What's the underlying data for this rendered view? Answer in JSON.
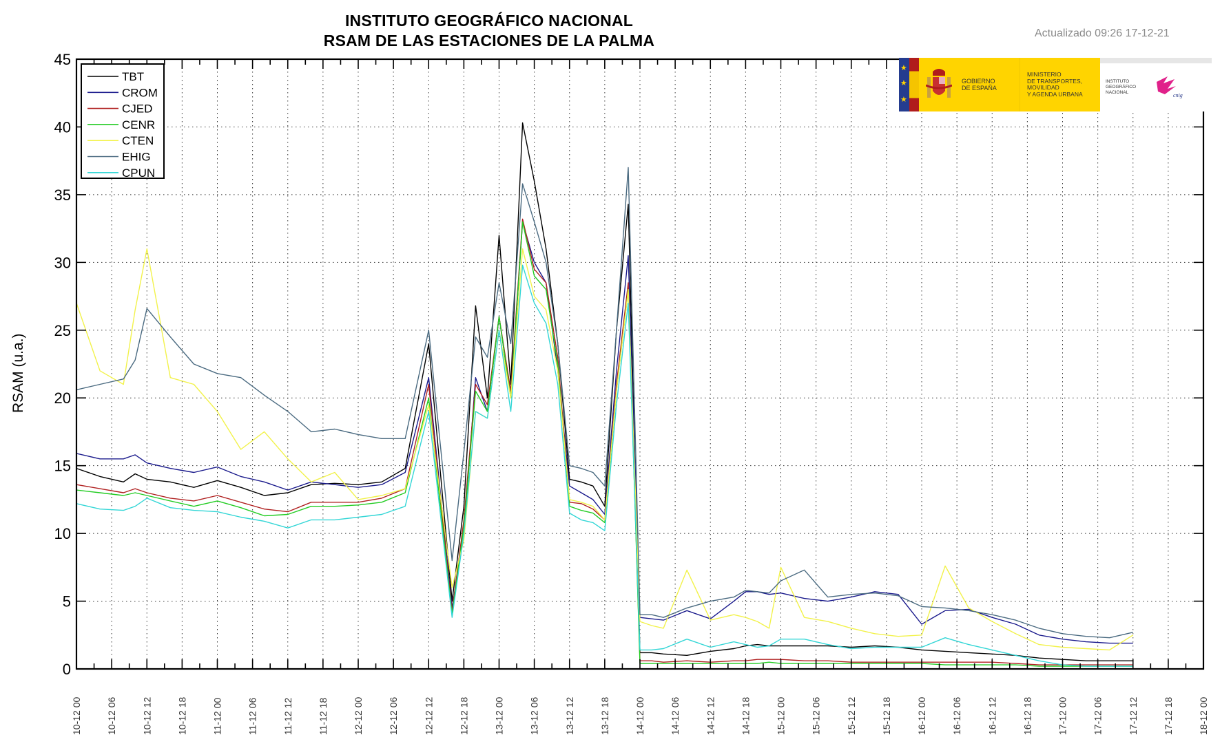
{
  "header": {
    "title_line1": "INSTITUTO GEOGRÁFICO NACIONAL",
    "title_line2": "RSAM DE LAS ESTACIONES DE LA PALMA",
    "updated": "Actualizado 09:26 17-12-21"
  },
  "logo": {
    "gobierno": "GOBIERNO DE ESPAÑA",
    "ministerio_1": "MINISTERIO",
    "ministerio_2": "DE TRANSPORTES, MOVILIDAD",
    "ministerio_3": "Y AGENDA URBANA",
    "ign_1": "INSTITUTO",
    "ign_2": "GEOGRÁFICO",
    "ign_3": "NACIONAL",
    "cnig": "cnig",
    "colors": {
      "yellow": "#ffd400",
      "blue": "#243c8f",
      "red": "#b01c1c",
      "magenta": "#e0218a"
    }
  },
  "chart_data": {
    "type": "line",
    "title": "INSTITUTO GEOGRÁFICO NACIONAL / RSAM DE LAS ESTACIONES DE LA PALMA",
    "xlabel": "",
    "ylabel": "RSAM (u.a.)",
    "ylim": [
      0,
      45
    ],
    "yticks": [
      0,
      5,
      10,
      15,
      20,
      25,
      30,
      35,
      40,
      45
    ],
    "xlim_hours": [
      0,
      192
    ],
    "x_unit": "hours since 10-12 00",
    "xtick_labels": [
      "10-12 00",
      "10-12 06",
      "10-12 12",
      "10-12 18",
      "11-12 00",
      "11-12 06",
      "11-12 12",
      "11-12 18",
      "12-12 00",
      "12-12 06",
      "12-12 12",
      "12-12 18",
      "13-12 00",
      "13-12 06",
      "13-12 12",
      "13-12 18",
      "14-12 00",
      "14-12 06",
      "14-12 12",
      "14-12 18",
      "15-12 00",
      "15-12 06",
      "15-12 12",
      "15-12 18",
      "16-12 00",
      "16-12 06",
      "16-12 12",
      "16-12 18",
      "17-12 00",
      "17-12 06",
      "17-12 12",
      "17-12 18",
      "18-12 00"
    ],
    "grid": true,
    "legend_position": "upper left",
    "x": [
      0,
      4,
      8,
      10,
      12,
      16,
      20,
      24,
      28,
      32,
      36,
      40,
      44,
      48,
      52,
      56,
      60,
      64,
      66,
      68,
      70,
      72,
      74,
      76,
      78,
      80,
      82,
      84,
      86,
      88,
      90,
      92,
      94,
      96,
      98,
      100,
      104,
      108,
      112,
      114,
      116,
      118,
      120,
      124,
      128,
      132,
      136,
      140,
      144,
      148,
      152,
      156,
      160,
      164,
      168,
      172,
      176,
      180
    ],
    "series": [
      {
        "name": "TBT",
        "color": "#000000",
        "values": [
          14.8,
          14.2,
          13.8,
          14.4,
          14.0,
          13.8,
          13.4,
          13.9,
          13.4,
          12.8,
          13.0,
          13.6,
          13.7,
          13.6,
          13.8,
          14.8,
          24.0,
          5.0,
          12.0,
          26.8,
          20.0,
          32.0,
          21.0,
          40.3,
          36.0,
          31.0,
          24.0,
          14.0,
          13.8,
          13.5,
          12.0,
          25.0,
          34.3,
          1.2,
          1.2,
          1.1,
          1.0,
          1.3,
          1.5,
          1.7,
          1.8,
          1.7,
          1.7,
          1.7,
          1.7,
          1.6,
          1.7,
          1.6,
          1.4,
          1.3,
          1.2,
          1.1,
          1.0,
          0.8,
          0.7,
          0.6,
          0.6,
          0.6
        ]
      },
      {
        "name": "CROM",
        "color": "#1a1a8c",
        "values": [
          15.9,
          15.5,
          15.5,
          15.8,
          15.2,
          14.8,
          14.5,
          14.9,
          14.2,
          13.8,
          13.2,
          13.8,
          13.6,
          13.4,
          13.6,
          14.5,
          21.5,
          4.5,
          10.0,
          21.5,
          19.0,
          26.0,
          20.0,
          33.0,
          30.0,
          28.5,
          22.0,
          13.5,
          13.0,
          12.5,
          11.4,
          22.0,
          30.5,
          3.8,
          3.7,
          3.6,
          4.3,
          3.7,
          5.0,
          5.7,
          5.7,
          5.5,
          5.6,
          5.2,
          5.0,
          5.3,
          5.7,
          5.5,
          3.3,
          4.3,
          4.4,
          3.8,
          3.3,
          2.5,
          2.2,
          2.0,
          1.9,
          1.9
        ]
      },
      {
        "name": "CJED",
        "color": "#b02020",
        "values": [
          13.6,
          13.3,
          13.0,
          13.3,
          13.0,
          12.6,
          12.4,
          12.8,
          12.3,
          11.8,
          11.6,
          12.3,
          12.3,
          12.3,
          12.6,
          13.3,
          21.0,
          4.2,
          11.0,
          21.0,
          19.5,
          26.0,
          20.5,
          33.2,
          29.5,
          28.5,
          23.0,
          12.3,
          12.2,
          11.8,
          11.0,
          21.0,
          28.5,
          0.6,
          0.6,
          0.5,
          0.6,
          0.5,
          0.6,
          0.6,
          0.7,
          0.7,
          0.7,
          0.6,
          0.6,
          0.5,
          0.5,
          0.5,
          0.5,
          0.5,
          0.5,
          0.5,
          0.4,
          0.3,
          0.3,
          0.3,
          0.3,
          0.3
        ]
      },
      {
        "name": "CENR",
        "color": "#22cc22",
        "values": [
          13.2,
          13.0,
          12.8,
          13.0,
          12.8,
          12.4,
          12.0,
          12.4,
          11.9,
          11.3,
          11.4,
          12.0,
          12.0,
          12.1,
          12.3,
          13.0,
          20.0,
          4.0,
          10.5,
          20.5,
          19.0,
          26.0,
          20.0,
          33.0,
          29.0,
          28.0,
          22.5,
          12.0,
          11.7,
          11.5,
          10.8,
          20.5,
          28.0,
          0.4,
          0.4,
          0.4,
          0.4,
          0.4,
          0.4,
          0.4,
          0.4,
          0.5,
          0.4,
          0.4,
          0.4,
          0.4,
          0.4,
          0.4,
          0.4,
          0.3,
          0.3,
          0.3,
          0.3,
          0.2,
          0.2,
          0.2,
          0.2,
          0.2
        ]
      },
      {
        "name": "CTEN",
        "color": "#f2f24a",
        "values": [
          27.0,
          22.0,
          21.0,
          26.5,
          31.0,
          21.5,
          21.0,
          19.0,
          16.2,
          17.5,
          15.5,
          13.8,
          14.5,
          12.5,
          12.8,
          13.3,
          19.5,
          6.0,
          9.5,
          19.0,
          18.5,
          25.0,
          20.0,
          31.0,
          27.5,
          26.5,
          22.0,
          12.5,
          12.3,
          12.0,
          11.0,
          20.5,
          28.0,
          3.5,
          3.2,
          3.0,
          7.3,
          3.6,
          4.0,
          3.8,
          3.5,
          3.0,
          7.5,
          3.8,
          3.5,
          3.0,
          2.6,
          2.4,
          2.5,
          7.6,
          4.5,
          3.5,
          2.6,
          1.8,
          1.6,
          1.5,
          1.4,
          2.5
        ]
      },
      {
        "name": "EHIG",
        "color": "#4a6a80",
        "values": [
          20.6,
          21.0,
          21.4,
          22.8,
          26.6,
          24.5,
          22.5,
          21.8,
          21.5,
          20.2,
          19.0,
          17.5,
          17.7,
          17.3,
          17.0,
          17.0,
          25.0,
          8.0,
          16.0,
          24.5,
          23.0,
          28.5,
          24.0,
          35.8,
          33.0,
          30.0,
          24.0,
          15.0,
          14.8,
          14.5,
          13.5,
          25.0,
          37.0,
          4.0,
          4.0,
          3.8,
          4.5,
          5.0,
          5.3,
          5.8,
          5.7,
          5.6,
          6.5,
          7.3,
          5.3,
          5.5,
          5.6,
          5.4,
          4.6,
          4.5,
          4.3,
          4.0,
          3.6,
          3.0,
          2.6,
          2.4,
          2.3,
          2.7
        ]
      },
      {
        "name": "CPUN",
        "color": "#33d6d6",
        "values": [
          12.2,
          11.8,
          11.7,
          12.0,
          12.6,
          11.9,
          11.7,
          11.6,
          11.2,
          10.9,
          10.4,
          11.0,
          11.0,
          11.2,
          11.4,
          12.0,
          19.0,
          3.8,
          10.0,
          19.0,
          18.5,
          25.0,
          19.0,
          29.8,
          27.0,
          25.5,
          21.0,
          11.5,
          11.0,
          10.8,
          10.2,
          19.5,
          27.0,
          1.4,
          1.4,
          1.5,
          2.2,
          1.6,
          2.0,
          1.8,
          1.6,
          1.7,
          2.2,
          2.2,
          1.8,
          1.5,
          1.6,
          1.6,
          1.6,
          2.3,
          1.8,
          1.4,
          1.0,
          0.6,
          0.3,
          0.2,
          0.2,
          0.2
        ]
      }
    ]
  }
}
